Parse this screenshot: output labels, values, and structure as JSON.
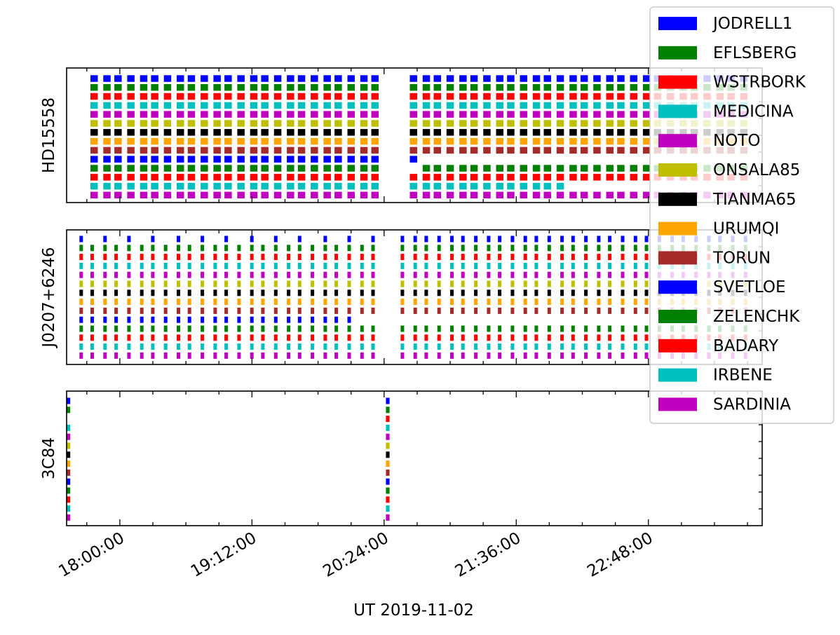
{
  "chart_data": {
    "type": "timeline",
    "xlabel": "UT 2019-11-02",
    "x_ticks": [
      "18:00:00",
      "19:12:00",
      "20:24:00",
      "21:36:00",
      "22:48:00"
    ],
    "x_range": [
      "17:31:00",
      "23:50:00"
    ],
    "legend_placement": "top-right",
    "stations": [
      {
        "name": "JODRELL1",
        "color": "#0000ff"
      },
      {
        "name": "EFLSBERG",
        "color": "#008000"
      },
      {
        "name": "WSTRBORK",
        "color": "#ff0000"
      },
      {
        "name": "MEDICINA",
        "color": "#00bfbf"
      },
      {
        "name": "NOTO",
        "color": "#bf00bf"
      },
      {
        "name": "ONSALA85",
        "color": "#bfbf00"
      },
      {
        "name": "TIANMA65",
        "color": "#000000"
      },
      {
        "name": "URUMQI",
        "color": "#ffa500"
      },
      {
        "name": "TORUN",
        "color": "#a52a2a"
      },
      {
        "name": "SVETLOE",
        "color": "#0000ff"
      },
      {
        "name": "ZELENCHK",
        "color": "#008000"
      },
      {
        "name": "BADARY",
        "color": "#ff0000"
      },
      {
        "name": "IRBENE",
        "color": "#00bfbf"
      },
      {
        "name": "SARDINIA",
        "color": "#bf00bf"
      }
    ],
    "panels": [
      {
        "source": "HD15558",
        "scan_times": [
          "17:44",
          "17:51",
          "17:57",
          "18:04",
          "18:11",
          "18:17",
          "18:24",
          "18:31",
          "18:37",
          "18:44",
          "18:51",
          "18:57",
          "19:04",
          "19:11",
          "19:17",
          "19:24",
          "19:31",
          "19:37",
          "19:44",
          "19:51",
          "19:57",
          "20:04",
          "20:11",
          "20:17",
          "20:38",
          "20:45",
          "20:51",
          "20:58",
          "21:05",
          "21:11",
          "21:18",
          "21:25",
          "21:31",
          "21:38",
          "21:45",
          "21:51",
          "21:58",
          "22:05",
          "22:11",
          "22:18",
          "22:25",
          "22:31",
          "22:38",
          "22:45",
          "22:51",
          "22:58",
          "23:05",
          "23:11",
          "23:18",
          "23:25",
          "23:31",
          "23:38"
        ],
        "scan_minutes": 4
      },
      {
        "source": "J0207+6246",
        "scan_times": [
          "17:38",
          "17:44",
          "17:51",
          "17:57",
          "18:04",
          "18:11",
          "18:17",
          "18:24",
          "18:31",
          "18:37",
          "18:44",
          "18:51",
          "18:57",
          "19:04",
          "19:11",
          "19:17",
          "19:24",
          "19:31",
          "19:37",
          "19:44",
          "19:51",
          "19:57",
          "20:04",
          "20:11",
          "20:17",
          "20:33",
          "20:40",
          "20:46",
          "20:53",
          "21:00",
          "21:06",
          "21:13",
          "21:20",
          "21:26",
          "21:33",
          "21:40",
          "21:46",
          "21:53",
          "22:00",
          "22:06",
          "22:13",
          "22:20",
          "22:26",
          "22:33",
          "22:40",
          "22:46",
          "22:53",
          "23:00",
          "23:06",
          "23:13",
          "23:20",
          "23:26",
          "23:33",
          "23:40"
        ],
        "scan_minutes": 1.5
      },
      {
        "source": "3C84",
        "scan_times": [
          "17:31",
          "20:25"
        ],
        "scan_minutes": 2
      }
    ]
  }
}
